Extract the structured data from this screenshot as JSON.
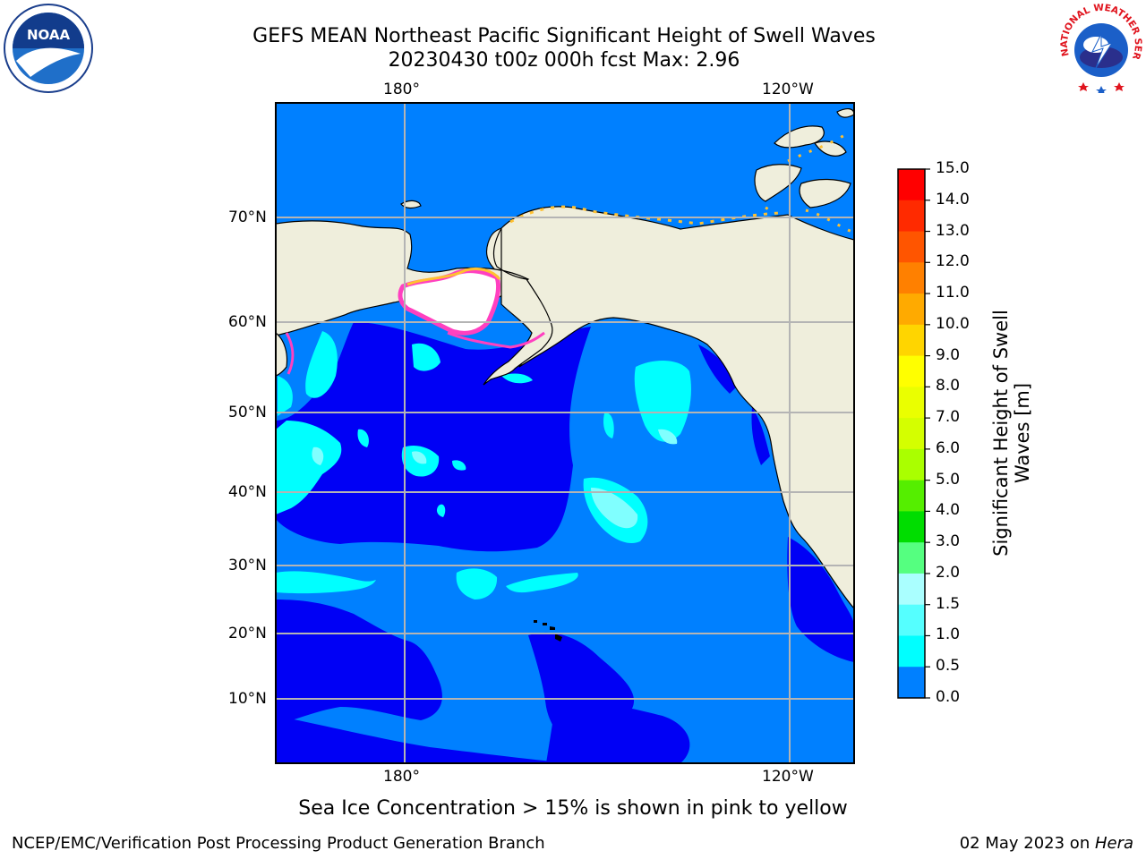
{
  "header": {
    "title_line1": "GEFS MEAN Northeast Pacific Significant Height of Swell Waves",
    "title_line2": "20230430 t00z 000h fcst   Max: 2.96"
  },
  "logos": {
    "left": {
      "name": "noaa-logo",
      "text": "NOAA"
    },
    "right": {
      "name": "nws-logo",
      "text": "NATIONAL WEATHER SERVICE"
    }
  },
  "map": {
    "lon_ticks_top": [
      "180°",
      "120°W"
    ],
    "lon_ticks_bottom": [
      "180°",
      "120°W"
    ],
    "lat_ticks": [
      "70°N",
      "60°N",
      "50°N",
      "40°N",
      "30°N",
      "20°N",
      "10°N"
    ],
    "colors": {
      "land": "#efeedc",
      "ocean_low": "#0000f5",
      "ocean_mid": "#0080ff",
      "ocean_high": "#00ffff",
      "swell_2": "#80ffff",
      "ice": "#ffffff",
      "ice_edge_pink": "#ff40c0",
      "ice_edge_yellow": "#ffc030",
      "grid": "#b4b4b4"
    }
  },
  "colorbar": {
    "label_line1": "Significant Height of Swell",
    "label_line2": "Waves [m]",
    "levels": [
      "15.0",
      "14.0",
      "13.0",
      "12.0",
      "11.0",
      "10.0",
      "9.0",
      "8.0",
      "7.0",
      "6.0",
      "5.0",
      "4.0",
      "3.0",
      "2.0",
      "1.5",
      "1.0",
      "0.5",
      "0.0"
    ],
    "colors": [
      "#ff0000",
      "#ff2a00",
      "#ff5500",
      "#ff8000",
      "#ffaa00",
      "#ffd500",
      "#ffff00",
      "#eaff00",
      "#d4ff00",
      "#aaff00",
      "#55ee00",
      "#00dd00",
      "#55ff80",
      "#aaffff",
      "#55ffff",
      "#00ffff",
      "#0080ff",
      "#0000ff"
    ]
  },
  "caption": "Sea Ice Concentration > 15% is shown in pink to yellow",
  "footer": {
    "left": "NCEP/EMC/Verification Post Processing Product Generation Branch",
    "right_prefix": "02 May 2023 on ",
    "right_italic": "Hera"
  }
}
